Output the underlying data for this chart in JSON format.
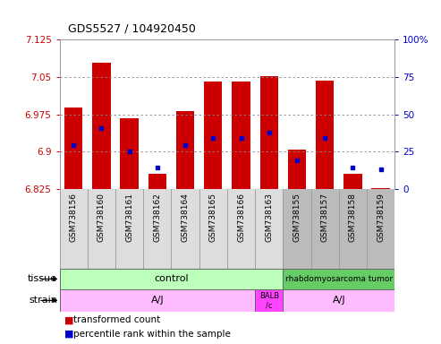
{
  "title": "GDS5527 / 104920450",
  "samples": [
    "GSM738156",
    "GSM738160",
    "GSM738161",
    "GSM738162",
    "GSM738164",
    "GSM738165",
    "GSM738166",
    "GSM738163",
    "GSM738155",
    "GSM738157",
    "GSM738158",
    "GSM738159"
  ],
  "bar_bottoms": [
    6.825,
    6.825,
    6.825,
    6.825,
    6.825,
    6.825,
    6.825,
    6.825,
    6.825,
    6.825,
    6.825,
    6.825
  ],
  "bar_tops": [
    6.988,
    7.078,
    6.968,
    6.855,
    6.982,
    7.04,
    7.04,
    7.052,
    6.905,
    7.042,
    6.855,
    6.828
  ],
  "blue_dots": [
    6.913,
    6.948,
    6.9,
    6.868,
    6.914,
    6.928,
    6.928,
    6.938,
    6.882,
    6.928,
    6.868,
    6.865
  ],
  "ylim_left": [
    6.825,
    7.125
  ],
  "ylim_right": [
    0,
    100
  ],
  "yticks_left": [
    6.825,
    6.9,
    6.975,
    7.05,
    7.125
  ],
  "yticks_right": [
    0,
    25,
    50,
    75,
    100
  ],
  "bar_color": "#cc0000",
  "dot_color": "#0000cc",
  "grid_color": "#888888",
  "bg_color": "#ffffff",
  "label_bg_light": "#dddddd",
  "label_bg_dark": "#bbbbbb",
  "tissue_green_light": "#bbffbb",
  "tissue_green_dark": "#66cc66",
  "strain_pink_light": "#ffbbff",
  "strain_pink_bright": "#ff44ff",
  "legend_red": "transformed count",
  "legend_blue": "percentile rank within the sample",
  "tissue_row_label": "tissue",
  "strain_row_label": "strain"
}
